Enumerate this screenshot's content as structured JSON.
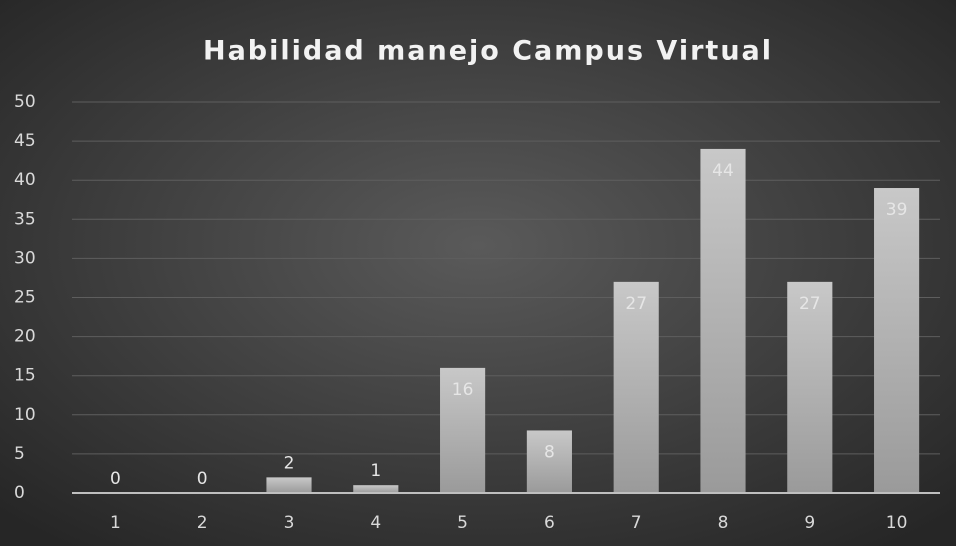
{
  "chart_data": {
    "type": "bar",
    "title": "Habilidad manejo Campus Virtual",
    "categories": [
      "1",
      "2",
      "3",
      "4",
      "5",
      "6",
      "7",
      "8",
      "9",
      "10"
    ],
    "values": [
      0,
      0,
      2,
      1,
      16,
      8,
      27,
      44,
      27,
      39
    ],
    "color": "#bfbfbf",
    "ylim": [
      0,
      50
    ],
    "yticks": [
      0,
      5,
      10,
      15,
      20,
      25,
      30,
      35,
      40,
      45,
      50
    ],
    "grid": true
  }
}
